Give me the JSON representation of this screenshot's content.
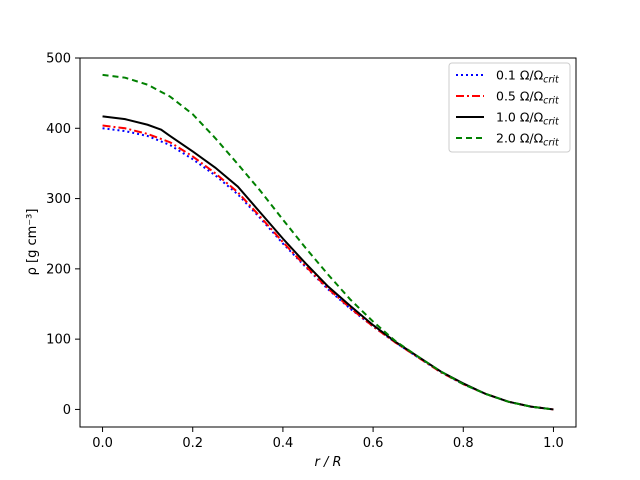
{
  "chart_data": {
    "type": "line",
    "xlabel": "r / R",
    "ylabel": "ρ [g cm⁻³]",
    "xlim": [
      -0.05,
      1.05
    ],
    "ylim": [
      -25,
      500
    ],
    "xticks": [
      0.0,
      0.2,
      0.4,
      0.6,
      0.8,
      1.0
    ],
    "xtick_labels": [
      "0.0",
      "0.2",
      "0.4",
      "0.6",
      "0.8",
      "1.0"
    ],
    "yticks": [
      0,
      100,
      200,
      300,
      400,
      500
    ],
    "ytick_labels": [
      "0",
      "100",
      "200",
      "300",
      "400",
      "500"
    ],
    "grid": false,
    "legend_position": "top-right",
    "series": [
      {
        "name_main": "0.1 Ω/Ω",
        "name_sub": "crit",
        "color": "#0000ff",
        "style": "dotted",
        "x": [
          0.0,
          0.05,
          0.1,
          0.15,
          0.2,
          0.25,
          0.3,
          0.35,
          0.4,
          0.45,
          0.5,
          0.55,
          0.6,
          0.65,
          0.7,
          0.75,
          0.8,
          0.85,
          0.9,
          0.95,
          1.0
        ],
        "y": [
          400,
          396,
          389,
          376,
          356,
          333,
          306,
          272,
          236,
          203,
          171,
          143,
          118,
          95,
          74,
          53,
          36,
          22,
          11,
          4,
          0
        ]
      },
      {
        "name_main": "0.5 Ω/Ω",
        "name_sub": "crit",
        "color": "#ff0000",
        "style": "dashdot",
        "x": [
          0.0,
          0.05,
          0.1,
          0.15,
          0.2,
          0.25,
          0.3,
          0.35,
          0.4,
          0.45,
          0.5,
          0.55,
          0.6,
          0.65,
          0.7,
          0.75,
          0.8,
          0.85,
          0.9,
          0.95,
          1.0
        ],
        "y": [
          404,
          400,
          392,
          380,
          360,
          336,
          309,
          274,
          238,
          204,
          172,
          144,
          118,
          95,
          74,
          53,
          36,
          22,
          11,
          4,
          0
        ]
      },
      {
        "name_main": "1.0 Ω/Ω",
        "name_sub": "crit",
        "color": "#000000",
        "style": "solid",
        "x": [
          0.0,
          0.05,
          0.1,
          0.13,
          0.15,
          0.2,
          0.25,
          0.3,
          0.35,
          0.4,
          0.45,
          0.5,
          0.55,
          0.6,
          0.65,
          0.7,
          0.75,
          0.8,
          0.85,
          0.9,
          0.95,
          1.0
        ],
        "y": [
          417,
          413,
          405,
          398,
          389,
          367,
          344,
          317,
          280,
          243,
          208,
          175,
          147,
          120,
          96,
          75,
          54,
          37,
          22,
          11,
          4,
          0
        ]
      },
      {
        "name_main": "2.0 Ω/Ω",
        "name_sub": "crit",
        "color": "#008000",
        "style": "dashed",
        "x": [
          0.0,
          0.05,
          0.1,
          0.15,
          0.2,
          0.25,
          0.3,
          0.35,
          0.4,
          0.45,
          0.5,
          0.55,
          0.6,
          0.65,
          0.7,
          0.75,
          0.8,
          0.85,
          0.9,
          0.95,
          1.0
        ],
        "y": [
          476,
          472,
          462,
          445,
          420,
          386,
          349,
          311,
          270,
          230,
          192,
          156,
          125,
          97,
          75,
          54,
          36,
          22,
          11,
          4,
          0
        ]
      }
    ]
  }
}
